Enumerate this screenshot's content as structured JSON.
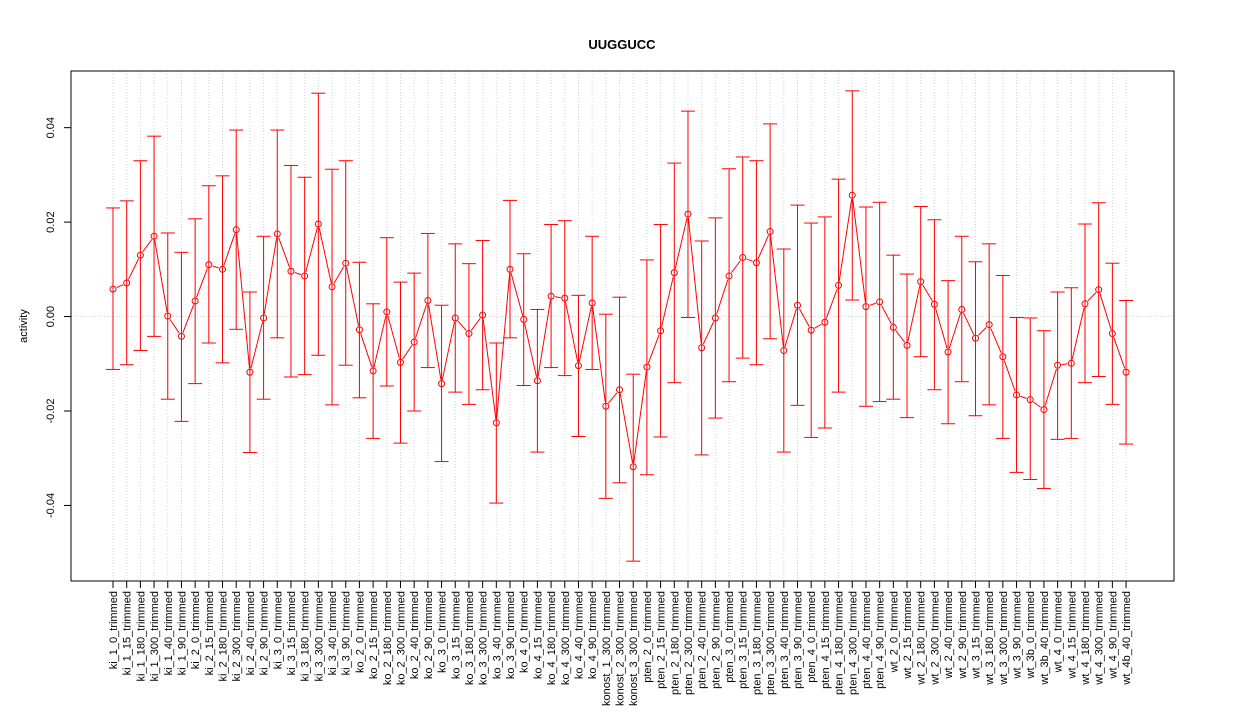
{
  "chart_data": {
    "type": "line",
    "title": "UUGGUCC",
    "xlabel": "",
    "ylabel": "activity",
    "ylim": [
      -0.056,
      0.052
    ],
    "yticks": [
      -0.04,
      -0.02,
      0.0,
      0.02,
      0.04
    ],
    "ytick_labels": [
      "-0.04",
      "-0.02",
      "0.00",
      "0.02",
      "0.04"
    ],
    "grid": true,
    "error_bars": true,
    "series_color": "#ff0000",
    "grid_color": "#d3d3d3",
    "categories": [
      "ki_1_0_trimmed",
      "ki_1_15_trimmed",
      "ki_1_180_trimmed",
      "ki_1_300_trimmed",
      "ki_1_40_trimmed",
      "ki_1_90_trimmed",
      "ki_2_0_trimmed",
      "ki_2_15_trimmed",
      "ki_2_180_trimmed",
      "ki_2_300_trimmed",
      "ki_2_40_trimmed",
      "ki_2_90_trimmed",
      "ki_3_0_trimmed",
      "ki_3_15_trimmed",
      "ki_3_180_trimmed",
      "ki_3_300_trimmed",
      "ki_3_40_trimmed",
      "ki_3_90_trimmed",
      "ko_2_0_trimmed",
      "ko_2_15_trimmed",
      "ko_2_180_trimmed",
      "ko_2_300_trimmed",
      "ko_2_40_trimmed",
      "ko_2_90_trimmed",
      "ko_3_0_trimmed",
      "ko_3_15_trimmed",
      "ko_3_180_trimmed",
      "ko_3_300_trimmed",
      "ko_3_40_trimmed",
      "ko_3_90_trimmed",
      "ko_4_0_trimmed",
      "ko_4_15_trimmed",
      "ko_4_180_trimmed",
      "ko_4_300_trimmed",
      "ko_4_40_trimmed",
      "ko_4_90_trimmed",
      "konost_1_300_trimmed",
      "konost_2_300_trimmed",
      "konost_3_300_trimmed",
      "pten_2_0_trimmed",
      "pten_2_15_trimmed",
      "pten_2_180_trimmed",
      "pten_2_300_trimmed",
      "pten_2_40_trimmed",
      "pten_2_90_trimmed",
      "pten_3_0_trimmed",
      "pten_3_15_trimmed",
      "pten_3_180_trimmed",
      "pten_3_300_trimmed",
      "pten_3_40_trimmed",
      "pten_3_90_trimmed",
      "pten_4_0_trimmed",
      "pten_4_15_trimmed",
      "pten_4_180_trimmed",
      "pten_4_300_trimmed",
      "pten_4_40_trimmed",
      "pten_4_90_trimmed",
      "wt_2_0_trimmed",
      "wt_2_15_trimmed",
      "wt_2_180_trimmed",
      "wt_2_300_trimmed",
      "wt_2_40_trimmed",
      "wt_2_90_trimmed",
      "wt_3_15_trimmed",
      "wt_3_180_trimmed",
      "wt_3_300_trimmed",
      "wt_3_90_trimmed",
      "wt_3b_0_trimmed",
      "wt_3b_40_trimmed",
      "wt_4_0_trimmed",
      "wt_4_15_trimmed",
      "wt_4_180_trimmed",
      "wt_4_300_trimmed",
      "wt_4_90_trimmed",
      "wt_4b_40_trimmed"
    ],
    "values": [
      0.0058,
      0.0071,
      0.013,
      0.017,
      0.0001,
      -0.0042,
      0.0033,
      0.011,
      0.01,
      0.0184,
      -0.0118,
      -0.0003,
      0.0175,
      0.0096,
      0.0086,
      0.0196,
      0.0063,
      0.0113,
      -0.0028,
      -0.0115,
      0.001,
      -0.0097,
      -0.0054,
      0.0034,
      -0.0142,
      -0.0003,
      -0.0036,
      0.0003,
      -0.0225,
      0.01,
      -0.0006,
      -0.0136,
      0.0043,
      0.0039,
      -0.0104,
      0.0029,
      -0.019,
      -0.0155,
      -0.0318,
      -0.0107,
      -0.003,
      0.0093,
      0.0217,
      -0.0066,
      -0.0003,
      0.0086,
      0.0125,
      0.0114,
      0.018,
      -0.0072,
      0.0024,
      -0.0029,
      -0.0012,
      0.0066,
      0.0257,
      0.0021,
      0.0031,
      -0.0023,
      -0.0061,
      0.0074,
      0.0026,
      -0.0075,
      0.0015,
      -0.0046,
      -0.0017,
      -0.0085,
      -0.0166,
      -0.0176,
      -0.0197,
      -0.0103,
      -0.0099,
      0.0027,
      0.0057,
      -0.0036,
      -0.0118
    ],
    "upper": [
      0.023,
      0.0245,
      0.033,
      0.0382,
      0.0177,
      0.0136,
      0.0207,
      0.0277,
      0.0298,
      0.0395,
      0.0052,
      0.017,
      0.0395,
      0.032,
      0.0295,
      0.0473,
      0.0312,
      0.033,
      0.0115,
      0.0027,
      0.0167,
      0.0073,
      0.0092,
      0.0176,
      0.0024,
      0.0154,
      0.0112,
      0.0161,
      -0.0056,
      0.0246,
      0.0133,
      0.0015,
      0.0195,
      0.0203,
      0.0045,
      0.017,
      0.0005,
      0.0041,
      -0.0122,
      0.012,
      0.0195,
      0.0325,
      0.0435,
      0.016,
      0.0209,
      0.0313,
      0.0338,
      0.033,
      0.0408,
      0.0143,
      0.0236,
      0.0198,
      0.0211,
      0.0291,
      0.0478,
      0.0232,
      0.0242,
      0.013,
      0.009,
      0.0233,
      0.0205,
      0.0076,
      0.017,
      0.0116,
      0.0154,
      0.0087,
      -0.0002,
      -0.0003,
      -0.003,
      0.0052,
      0.0061,
      0.0196,
      0.0241,
      0.0113,
      0.0034
    ],
    "lower": [
      -0.0112,
      -0.0102,
      -0.0072,
      -0.0042,
      -0.0175,
      -0.0222,
      -0.0142,
      -0.0056,
      -0.0098,
      -0.0027,
      -0.0288,
      -0.0175,
      -0.0045,
      -0.0128,
      -0.0123,
      -0.0082,
      -0.0187,
      -0.0103,
      -0.0172,
      -0.0258,
      -0.0147,
      -0.0268,
      -0.02,
      -0.0108,
      -0.0307,
      -0.016,
      -0.0186,
      -0.0155,
      -0.0395,
      -0.0045,
      -0.0146,
      -0.0287,
      -0.0108,
      -0.0125,
      -0.0254,
      -0.0112,
      -0.0385,
      -0.0352,
      -0.0518,
      -0.0335,
      -0.0255,
      -0.014,
      -0.0002,
      -0.0293,
      -0.0215,
      -0.0138,
      -0.0088,
      -0.0102,
      -0.0047,
      -0.0287,
      -0.0188,
      -0.0256,
      -0.0236,
      -0.016,
      0.0035,
      -0.019,
      -0.018,
      -0.0175,
      -0.0214,
      -0.0085,
      -0.0155,
      -0.0227,
      -0.0138,
      -0.021,
      -0.0187,
      -0.0258,
      -0.033,
      -0.0345,
      -0.0364,
      -0.026,
      -0.0258,
      -0.014,
      -0.0127,
      -0.0186,
      -0.027
    ]
  }
}
